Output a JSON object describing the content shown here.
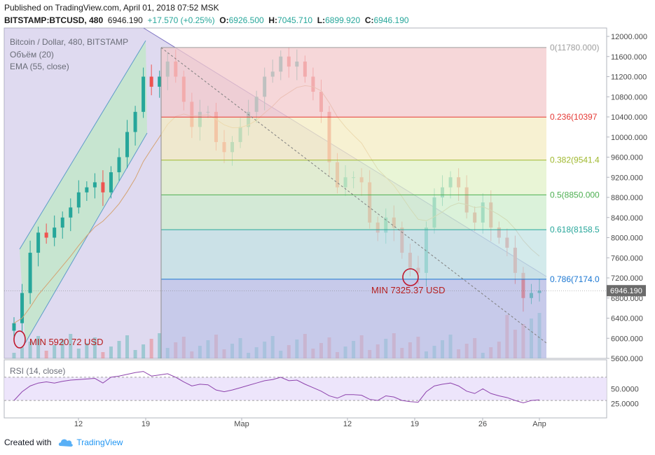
{
  "header": {
    "published": "Published on TradingView.com, April 01, 2018 07:52 MSK",
    "symbol": "BITSTAMP:BTCUSD, 480",
    "price": "6946.190",
    "change": "+17.570 (+0.25%)",
    "o_label": "O:",
    "o": "6926.500",
    "h_label": "H:",
    "h": "7045.710",
    "l_label": "L:",
    "l": "6899.920",
    "c_label": "C:",
    "c": "6946.190"
  },
  "legend": {
    "title": "Bitcoin / Dollar, 480, BITSTAMP",
    "volume": "Объём (20)",
    "ema": "EMA (55, close)",
    "rsi": "RSI (14, close)"
  },
  "footer": {
    "created": "Created with",
    "brand": "TradingView"
  },
  "colors": {
    "up": "#26a69a",
    "down": "#ef5350",
    "rsi_line": "#8e44ad",
    "fib_red": "#f5c6c8",
    "fib_green": "#c9ecd0",
    "fib_blue": "#b7c6ea"
  },
  "chart_data": {
    "type": "candlestick",
    "title": "Bitcoin / Dollar, 480, BITSTAMP",
    "x_ticks": [
      "12",
      "19",
      "Мар",
      "12",
      "19",
      "26",
      "Апр"
    ],
    "y_ticks": [
      "12000.000",
      "11600.000",
      "11200.000",
      "10800.000",
      "10400.000",
      "10000.000",
      "9600.000",
      "9200.000",
      "8800.000",
      "8400.000",
      "8000.000",
      "7600.000",
      "7200.000",
      "6800.000",
      "6400.000",
      "6000.000",
      "5600.000"
    ],
    "ylim": [
      5600,
      12000
    ],
    "last_price": "6946.190",
    "fib_levels": [
      {
        "label": "0(11780.000)",
        "value": 11780
      },
      {
        "label": "0.236(10397",
        "value": 10397
      },
      {
        "label": "0.382(9541.4",
        "value": 9541.4
      },
      {
        "label": "0.5(8850.000",
        "value": 8850
      },
      {
        "label": "0.618(8158.5",
        "value": 8158.5
      },
      {
        "label": "0.786(7174.0",
        "value": 7174.0
      }
    ],
    "annotations": [
      {
        "text": "MIN 5920.72 USD",
        "value": 5920.72
      },
      {
        "text": "MIN 7325.37 USD",
        "value": 7325.37
      }
    ],
    "close": [
      6300,
      6900,
      7700,
      8100,
      8000,
      8200,
      8400,
      8600,
      8900,
      9000,
      9100,
      8900,
      9300,
      9600,
      10100,
      10500,
      11200,
      11000,
      11200,
      11500,
      11200,
      10700,
      10200,
      10500,
      10500,
      9900,
      9700,
      9900,
      10200,
      10500,
      10800,
      11200,
      11300,
      11600,
      11400,
      11500,
      11200,
      10900,
      10500,
      9500,
      9000,
      9200,
      9200,
      9100,
      8300,
      8100,
      8400,
      8200,
      7700,
      7400,
      7300,
      8200,
      8800,
      9000,
      9200,
      9000,
      8500,
      8300,
      8700,
      8200,
      8000,
      7800,
      7300,
      6800,
      6900,
      6946
    ],
    "rsi": {
      "ylim": [
        0,
        100
      ],
      "ticks": [
        "50.0000",
        "25.0000"
      ],
      "band": [
        30,
        70
      ],
      "values": [
        30,
        45,
        55,
        60,
        62,
        60,
        63,
        65,
        66,
        67,
        68,
        60,
        70,
        72,
        75,
        78,
        80,
        72,
        74,
        76,
        70,
        62,
        55,
        58,
        57,
        48,
        45,
        48,
        52,
        56,
        60,
        64,
        66,
        70,
        64,
        65,
        58,
        52,
        46,
        38,
        34,
        40,
        40,
        39,
        32,
        30,
        38,
        36,
        30,
        28,
        27,
        45,
        55,
        58,
        60,
        55,
        46,
        42,
        50,
        42,
        38,
        35,
        30,
        26,
        30,
        31
      ]
    }
  }
}
